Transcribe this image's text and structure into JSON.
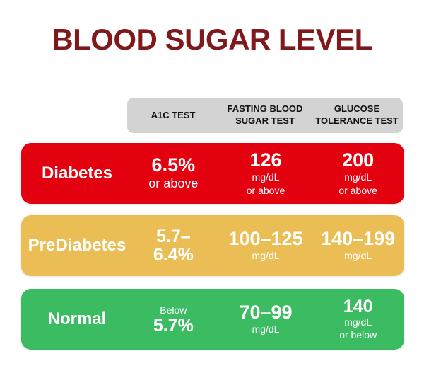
{
  "title": "BLOOD SUGAR LEVEL",
  "colors": {
    "title": "#7E191C",
    "header_bg": "#D3D3D3",
    "header_text": "#111111",
    "row_text": "#FFFFFF",
    "diabetes_red": "#E3000F",
    "prediabetes_yellow": "#EBBE55",
    "normal_green": "#3BBC62"
  },
  "header": {
    "columns": [
      {
        "label": "A1C TEST"
      },
      {
        "label": "FASTING BLOOD SUGAR TEST"
      },
      {
        "label": "GLUCOSE TOLERANCE TEST"
      }
    ]
  },
  "rows": [
    {
      "name": "Diabetes",
      "color": "#E3000F",
      "cells": [
        {
          "lines": [
            {
              "text": "6.5%"
            },
            {
              "text": "or above"
            }
          ]
        },
        {
          "lines": [
            {
              "text": "126"
            },
            {
              "text": "mg/dL"
            },
            {
              "text": "or above"
            }
          ]
        },
        {
          "lines": [
            {
              "text": "200"
            },
            {
              "text": "mg/dL"
            },
            {
              "text": "or above"
            }
          ]
        }
      ]
    },
    {
      "name": "PreDiabetes",
      "color": "#EBBE55",
      "cells": [
        {
          "lines": [
            {
              "text": "5.7–"
            },
            {
              "text": "6.4%"
            }
          ]
        },
        {
          "lines": [
            {
              "text": "100–125"
            },
            {
              "text": "mg/dL"
            }
          ]
        },
        {
          "lines": [
            {
              "text": "140–199"
            },
            {
              "text": "mg/dL"
            }
          ]
        }
      ]
    },
    {
      "name": "Normal",
      "color": "#3BBC62",
      "cells": [
        {
          "lines": [
            {
              "text": "Below"
            },
            {
              "text": "5.7%"
            }
          ]
        },
        {
          "lines": [
            {
              "text": "70–99"
            },
            {
              "text": "mg/dL"
            }
          ]
        },
        {
          "lines": [
            {
              "text": "140"
            },
            {
              "text": "mg/dL"
            },
            {
              "text": "or below"
            }
          ]
        }
      ]
    }
  ],
  "chart_data": {
    "type": "table",
    "title": "BLOOD SUGAR LEVEL",
    "columns": [
      "",
      "A1C TEST",
      "FASTING BLOOD SUGAR TEST",
      "GLUCOSE TOLERANCE TEST"
    ],
    "rows": [
      [
        "Diabetes",
        "6.5% or above",
        "126 mg/dL or above",
        "200 mg/dL or above"
      ],
      [
        "PreDiabetes",
        "5.7–6.4%",
        "100–125 mg/dL",
        "140–199 mg/dL"
      ],
      [
        "Normal",
        "Below 5.7%",
        "70–99 mg/dL",
        "140 mg/dL or below"
      ]
    ]
  }
}
